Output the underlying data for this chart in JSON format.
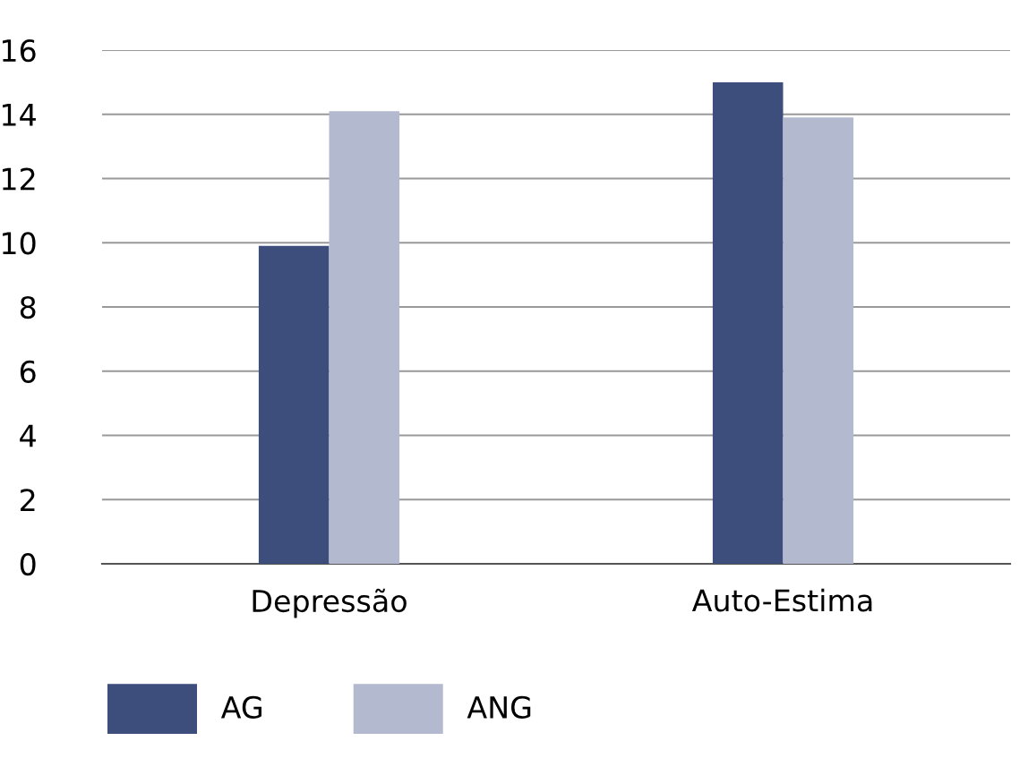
{
  "chart_data": {
    "type": "bar",
    "categories": [
      "Depressão",
      "Auto-Estima"
    ],
    "series": [
      {
        "name": "AG",
        "color": "#3d4e7c",
        "values": [
          9.9,
          15.0
        ]
      },
      {
        "name": "ANG",
        "color": "#b3b9cf",
        "values": [
          14.1,
          13.9
        ]
      }
    ],
    "ylim": [
      0,
      16
    ],
    "yticks": [
      0,
      2,
      4,
      6,
      8,
      10,
      12,
      14,
      16
    ],
    "grid": "y",
    "legend": "bottom left"
  }
}
